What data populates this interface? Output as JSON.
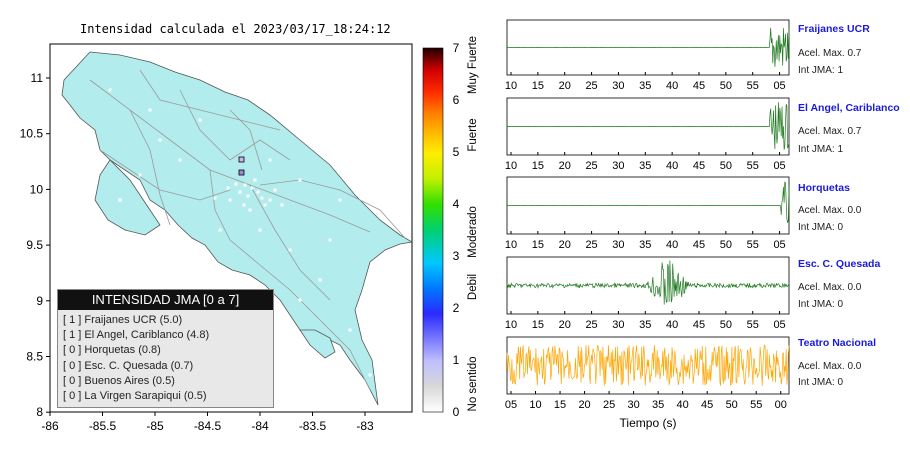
{
  "map": {
    "title": "Intensidad calculada el 2023/03/17_18:24:12",
    "x_ticks": [
      "-86",
      "-85.5",
      "-85",
      "-84.5",
      "-84",
      "-83.5",
      "-83"
    ],
    "y_ticks": [
      "11",
      "10.5",
      "10",
      "9.5",
      "9",
      "8.5",
      "8"
    ],
    "land_color": "#b2ecec",
    "legend": {
      "title": "INTENSIDAD JMA [0 a 7]",
      "items": [
        "[ 1 ]  Fraijanes UCR (5.0)",
        "[ 1 ]  El Angel, Cariblanco (4.8)",
        "[ 0 ]  Horquetas (0.8)",
        "[ 0 ]  Esc. C. Quesada (0.7)",
        "[ 0 ]  Buenos Aires (0.5)",
        "[ 0 ]  La Virgen Sarapiqui (0.5)"
      ]
    }
  },
  "colorbar": {
    "ticks": [
      "0",
      "1",
      "2",
      "3",
      "4",
      "5",
      "6",
      "7"
    ],
    "labels": [
      "No sentido",
      "Debil",
      "Moderado",
      "Fuerte",
      "Muy Fuerte"
    ]
  },
  "stations": [
    {
      "name": "Fraijanes UCR",
      "accel": "Acel. Max. 0.7",
      "int": "Int JMA: 1"
    },
    {
      "name": "El Angel, Cariblanco",
      "accel": "Acel. Max. 0.7",
      "int": "Int JMA: 1"
    },
    {
      "name": "Horquetas",
      "accel": "Acel. Max. 0.0",
      "int": "Int JMA: 0"
    },
    {
      "name": "Esc. C. Quesada",
      "accel": "Acel. Max. 0.0",
      "int": "Int JMA: 0"
    },
    {
      "name": "Teatro Nacional",
      "accel": "Acel. Max. 0.0",
      "int": "Int JMA: 0"
    }
  ],
  "seismogram_ticks_a": [
    "10",
    "15",
    "20",
    "25",
    "30",
    "35",
    "40",
    "45",
    "50",
    "55",
    "05"
  ],
  "seismogram_ticks_b": [
    "05",
    "10",
    "15",
    "20",
    "25",
    "30",
    "35",
    "40",
    "45",
    "50",
    "55",
    "00"
  ],
  "time_label": "Tiempo (s)",
  "colors": {
    "trace_green": "#1f7a1f",
    "trace_orange": "#ffa500",
    "station_blue": "#1a1adc"
  },
  "chart_data": [
    {
      "type": "line",
      "name": "Fraijanes UCR",
      "note": "flat trace with burst at end",
      "ylim": [
        -1,
        1
      ]
    },
    {
      "type": "line",
      "name": "El Angel, Cariblanco",
      "note": "flat trace with burst at end",
      "ylim": [
        -1,
        1
      ]
    },
    {
      "type": "line",
      "name": "Horquetas",
      "note": "flat trace with spike at end",
      "ylim": [
        -1,
        1
      ]
    },
    {
      "type": "line",
      "name": "Esc. C. Quesada",
      "note": "low noise with burst near 40",
      "ylim": [
        -1,
        1
      ]
    },
    {
      "type": "line",
      "name": "Teatro Nacional",
      "note": "continuous noise",
      "ylim": [
        -1,
        1
      ]
    }
  ]
}
